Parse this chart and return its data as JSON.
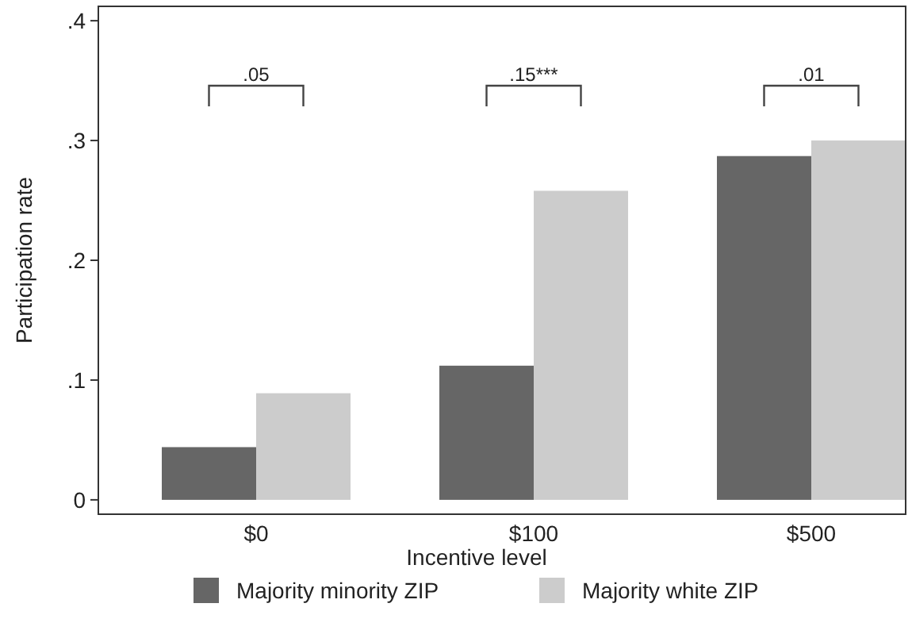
{
  "chart_data": {
    "type": "bar",
    "xlabel": "Incentive level",
    "ylabel": "Participation rate",
    "categories": [
      "$0",
      "$100",
      "$500"
    ],
    "series": [
      {
        "name": "Majority minority ZIP",
        "color": "#666666",
        "values": [
          0.044,
          0.112,
          0.287
        ]
      },
      {
        "name": "Majority white ZIP",
        "color": "#cccccc",
        "values": [
          0.089,
          0.258,
          0.3
        ]
      }
    ],
    "ylim": [
      -0.012,
      0.412
    ],
    "yticks": [
      {
        "value": 0,
        "label": "0"
      },
      {
        "value": 0.1,
        "label": ".1"
      },
      {
        "value": 0.2,
        "label": ".2"
      },
      {
        "value": 0.3,
        "label": ".3"
      },
      {
        "value": 0.4,
        "label": ".4"
      }
    ],
    "annotations": [
      ".05",
      ".15***",
      ".01"
    ],
    "grid": false,
    "legend": "bottom"
  }
}
